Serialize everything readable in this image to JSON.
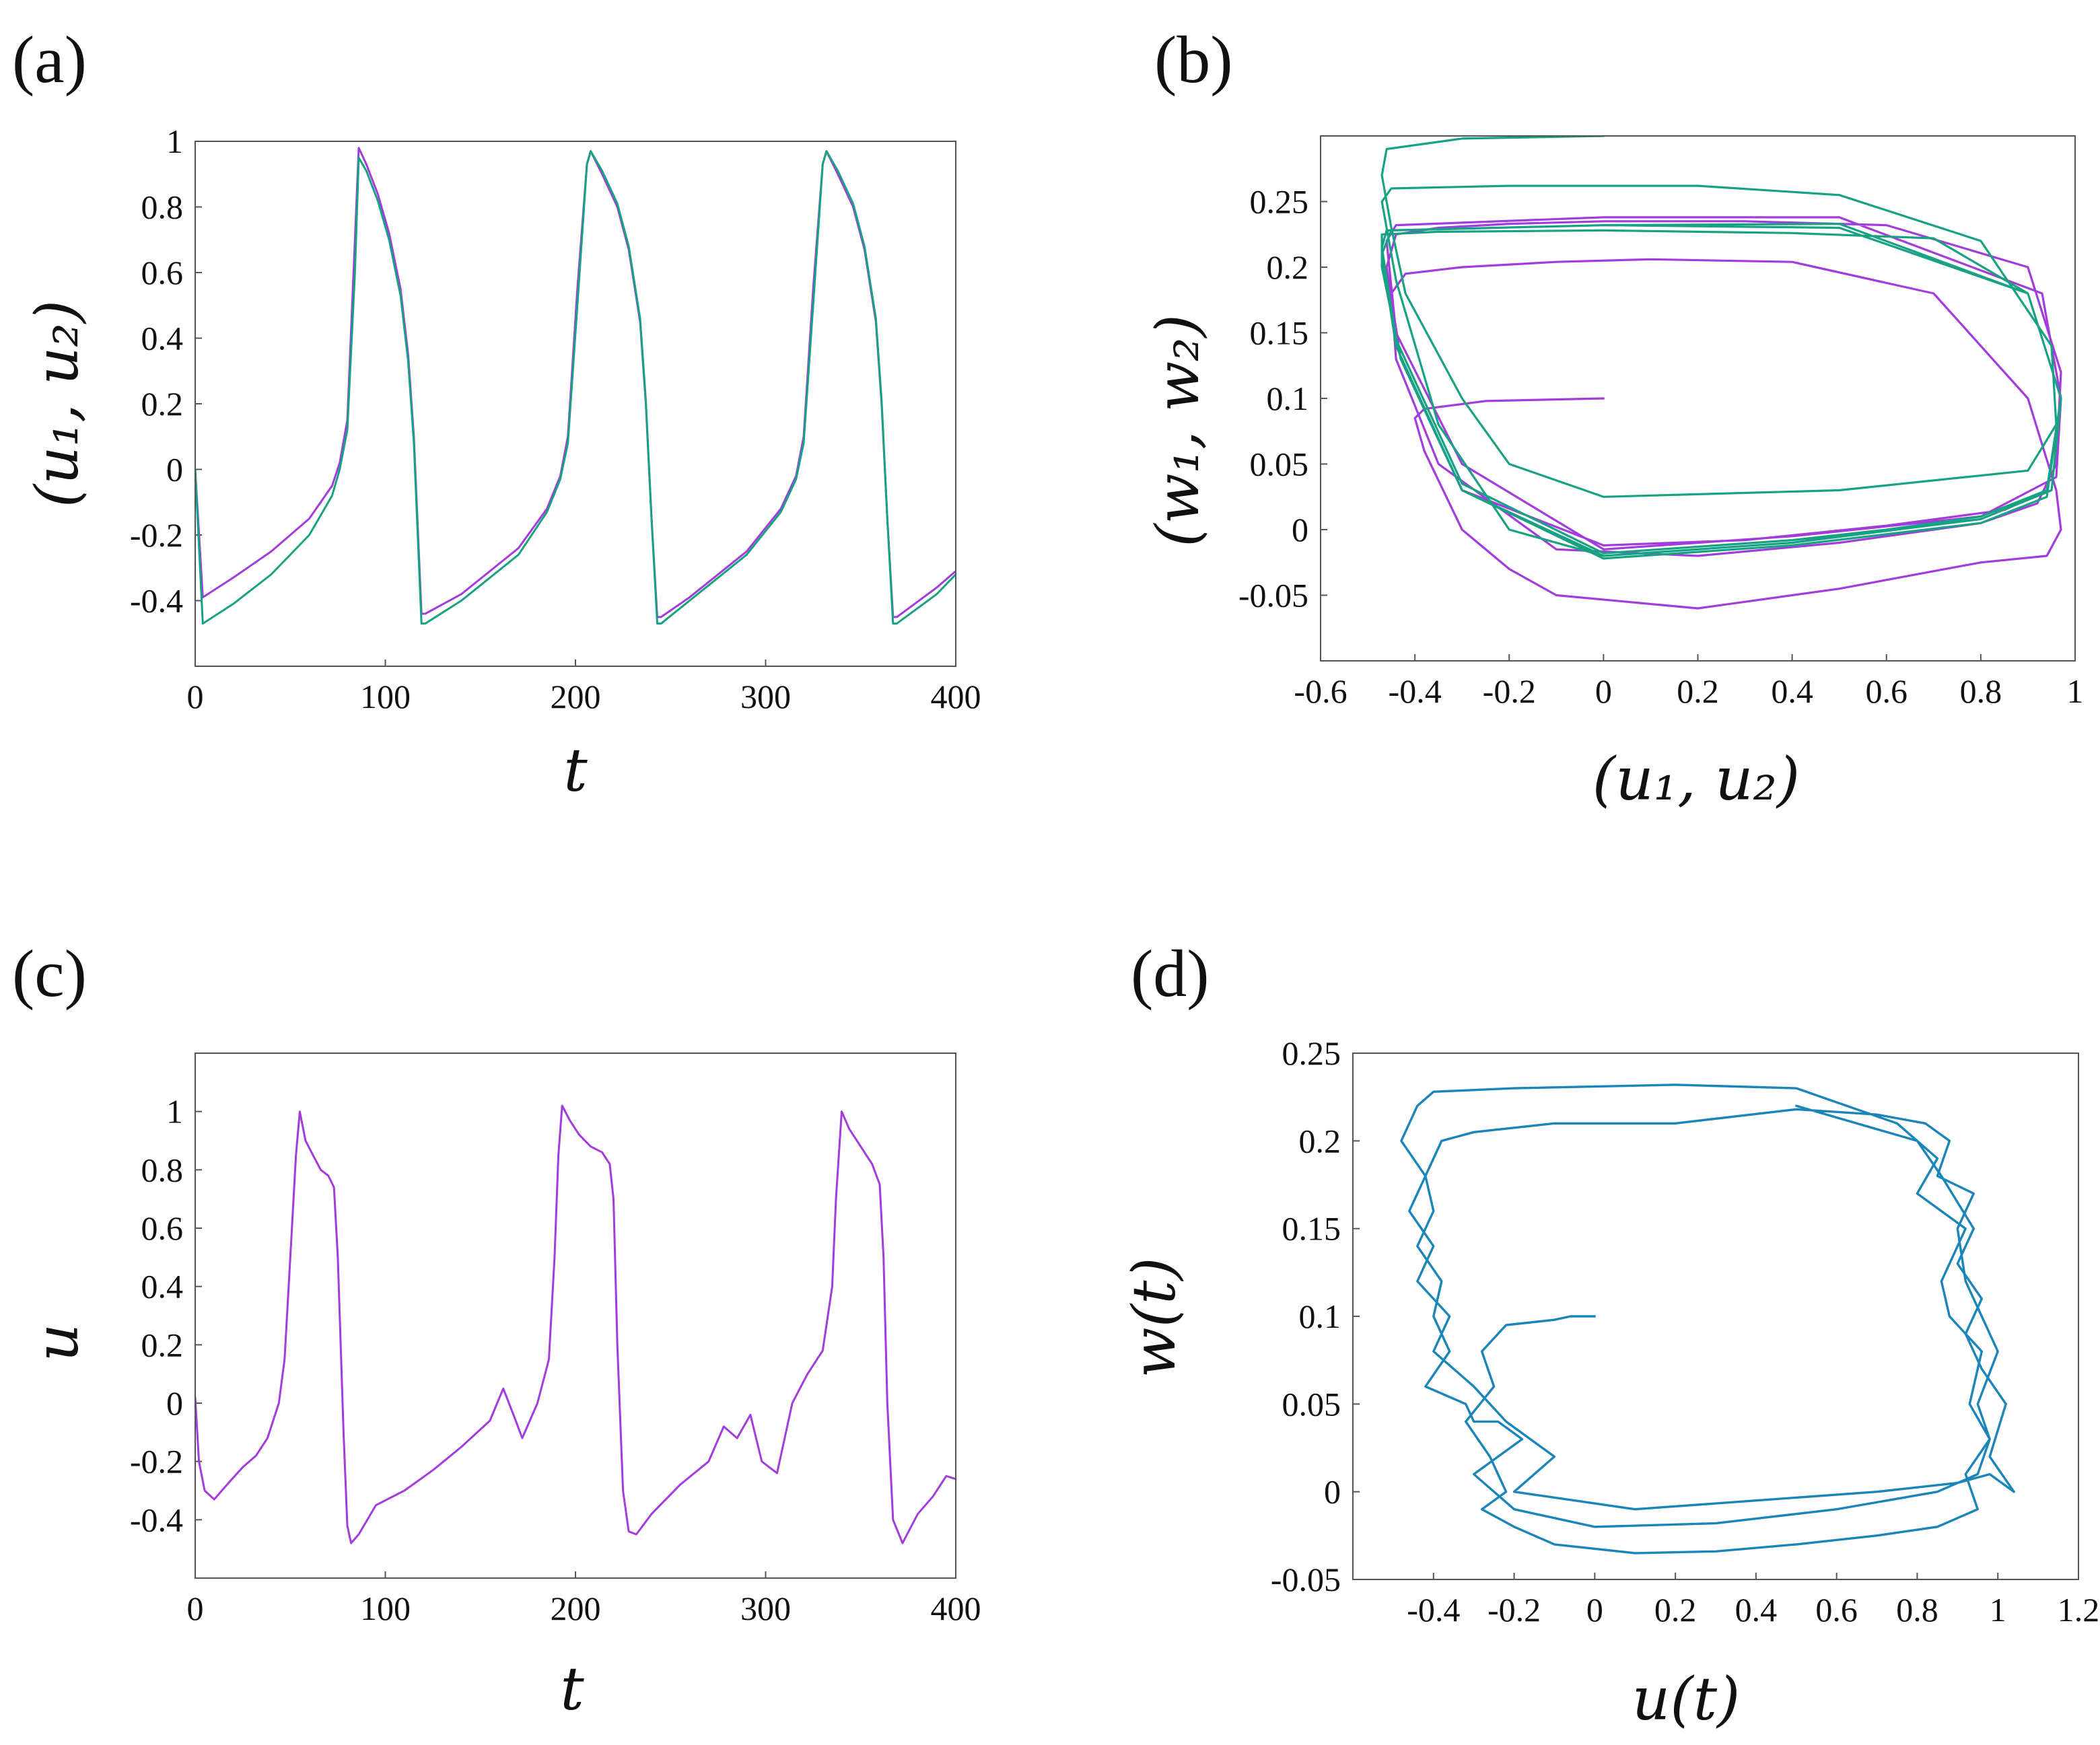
{
  "colors": {
    "purple": "#a23cdc",
    "green": "#17a283",
    "blue": "#1a85b8",
    "axis": "#555555",
    "text": "#111111"
  },
  "chart_data": [
    {
      "id": "a",
      "panel_label": "(a)",
      "type": "line",
      "title": "",
      "xlabel": "t",
      "ylabel": "(u1, u2)",
      "xlabel_display": "t",
      "ylabel_display": "(u₁, u₂)",
      "xlim": [
        0,
        400
      ],
      "ylim": [
        -0.6,
        1.0
      ],
      "xticks": [
        0,
        100,
        200,
        300,
        400
      ],
      "xtick_labels": [
        "0",
        "100",
        "200",
        "300",
        "400"
      ],
      "yticks": [
        1,
        0.8,
        0.6,
        0.4,
        0.2,
        0,
        -0.2,
        -0.4
      ],
      "ytick_labels": [
        "1",
        "0.8",
        "0.6",
        "0.4",
        "0.2",
        "0",
        "-0.2",
        "-0.4"
      ],
      "series": [
        {
          "name": "u1",
          "color": "purple",
          "x": [
            0,
            4,
            20,
            40,
            60,
            72,
            76,
            80,
            84,
            86,
            90,
            96,
            102,
            108,
            112,
            115,
            119,
            121,
            140,
            170,
            185,
            192,
            196,
            201,
            206,
            208,
            214,
            222,
            228,
            234,
            237,
            240,
            243,
            245,
            260,
            290,
            308,
            316,
            320,
            325,
            330,
            332,
            338,
            346,
            352,
            358,
            361,
            364,
            367,
            369,
            390,
            400
          ],
          "y": [
            0,
            -0.39,
            -0.33,
            -0.25,
            -0.15,
            -0.05,
            0.02,
            0.15,
            0.7,
            0.98,
            0.93,
            0.84,
            0.72,
            0.55,
            0.35,
            0.1,
            -0.44,
            -0.44,
            -0.38,
            -0.24,
            -0.12,
            -0.02,
            0.1,
            0.55,
            0.93,
            0.97,
            0.9,
            0.8,
            0.67,
            0.45,
            0.2,
            -0.15,
            -0.45,
            -0.45,
            -0.39,
            -0.25,
            -0.12,
            -0.02,
            0.1,
            0.55,
            0.93,
            0.97,
            0.9,
            0.8,
            0.67,
            0.45,
            0.2,
            -0.15,
            -0.45,
            -0.45,
            -0.36,
            -0.31
          ]
        },
        {
          "name": "u2",
          "color": "green",
          "x": [
            0,
            4,
            20,
            40,
            60,
            72,
            76,
            80,
            84,
            86,
            90,
            96,
            102,
            108,
            112,
            115,
            119,
            121,
            140,
            170,
            185,
            192,
            196,
            201,
            206,
            208,
            214,
            222,
            228,
            234,
            237,
            240,
            243,
            245,
            260,
            290,
            308,
            316,
            320,
            325,
            330,
            332,
            338,
            346,
            352,
            358,
            361,
            364,
            367,
            369,
            390,
            400
          ],
          "y": [
            0,
            -0.47,
            -0.41,
            -0.32,
            -0.2,
            -0.08,
            0.0,
            0.12,
            0.6,
            0.95,
            0.91,
            0.82,
            0.7,
            0.53,
            0.33,
            0.08,
            -0.47,
            -0.47,
            -0.4,
            -0.26,
            -0.13,
            -0.03,
            0.08,
            0.5,
            0.93,
            0.97,
            0.91,
            0.81,
            0.68,
            0.46,
            0.21,
            -0.15,
            -0.47,
            -0.47,
            -0.4,
            -0.26,
            -0.13,
            -0.03,
            0.08,
            0.5,
            0.93,
            0.97,
            0.91,
            0.81,
            0.68,
            0.46,
            0.21,
            -0.15,
            -0.47,
            -0.47,
            -0.38,
            -0.32
          ]
        }
      ]
    },
    {
      "id": "b",
      "panel_label": "(b)",
      "type": "line",
      "title": "",
      "xlabel": "(u1, u2)",
      "ylabel": "(w1, w2)",
      "xlabel_display": "(u₁, u₂)",
      "ylabel_display": "(w₁, w₂)",
      "xlim": [
        -0.6,
        1.0
      ],
      "ylim": [
        -0.1,
        0.3
      ],
      "xticks": [
        -0.6,
        -0.4,
        -0.2,
        0,
        0.2,
        0.4,
        0.6,
        0.8,
        1
      ],
      "xtick_labels": [
        "-0.6",
        "-0.4",
        "-0.2",
        "0",
        "0.2",
        "0.4",
        "0.6",
        "0.8",
        "1"
      ],
      "yticks": [
        0.25,
        0.2,
        0.15,
        0.1,
        0.05,
        0,
        -0.05
      ],
      "ytick_labels": [
        "0.25",
        "0.2",
        "0.15",
        "0.1",
        "0.05",
        "0",
        "-0.05"
      ],
      "series": [
        {
          "name": "w1 vs u1",
          "color": "purple",
          "x": [
            0,
            -0.25,
            -0.38,
            -0.4,
            -0.38,
            -0.3,
            -0.2,
            -0.1,
            0.2,
            0.5,
            0.8,
            0.94,
            0.97,
            0.96,
            0.9,
            0.7,
            0.4,
            0.1,
            -0.1,
            -0.3,
            -0.42,
            -0.45,
            -0.44,
            -0.35,
            -0.1,
            0.2,
            0.5,
            0.8,
            0.92,
            0.96,
            0.97,
            0.9,
            0.6,
            0.3,
            0.0,
            -0.2,
            -0.35,
            -0.44,
            -0.46,
            -0.43,
            -0.3,
            0.0,
            0.3,
            0.6,
            0.85,
            0.94,
            0.97,
            0.93,
            0.5,
            0.0,
            -0.44,
            -0.46,
            -0.44,
            -0.3,
            0.0,
            0.4,
            0.8,
            0.96,
            0.97
          ],
          "y": [
            0.1,
            0.098,
            0.092,
            0.085,
            0.06,
            0.0,
            -0.03,
            -0.05,
            -0.06,
            -0.045,
            -0.025,
            -0.02,
            0.0,
            0.03,
            0.1,
            0.18,
            0.204,
            0.206,
            0.204,
            0.2,
            0.195,
            0.18,
            0.13,
            0.05,
            -0.015,
            -0.02,
            -0.01,
            0.005,
            0.02,
            0.05,
            0.12,
            0.2,
            0.232,
            0.235,
            0.235,
            0.233,
            0.23,
            0.225,
            0.2,
            0.13,
            0.03,
            -0.012,
            -0.008,
            0.003,
            0.015,
            0.03,
            0.1,
            0.18,
            0.238,
            0.238,
            0.232,
            0.22,
            0.15,
            0.05,
            -0.015,
            -0.005,
            0.01,
            0.04,
            0.1
          ]
        },
        {
          "name": "w2 vs u2",
          "color": "green",
          "x": [
            0,
            -0.3,
            -0.46,
            -0.47,
            -0.45,
            -0.42,
            -0.3,
            -0.2,
            0.0,
            0.5,
            0.9,
            0.96,
            0.95,
            0.8,
            0.5,
            0.2,
            -0.2,
            -0.45,
            -0.47,
            -0.44,
            -0.35,
            -0.2,
            0.0,
            0.4,
            0.8,
            0.94,
            0.97,
            0.9,
            0.7,
            0.4,
            0.0,
            -0.35,
            -0.47,
            -0.47,
            -0.43,
            -0.3,
            0.0,
            0.4,
            0.8,
            0.94,
            0.97,
            0.9,
            0.5,
            0.0,
            -0.45,
            -0.47,
            -0.44,
            -0.3,
            0.0,
            0.4,
            0.8,
            0.95,
            0.97,
            0.9,
            0.5,
            0.0,
            -0.46,
            -0.47,
            -0.44,
            -0.3,
            0.0,
            0.4,
            0.8,
            0.95,
            0.97
          ],
          "y": [
            0.3,
            0.298,
            0.29,
            0.27,
            0.23,
            0.18,
            0.1,
            0.05,
            0.025,
            0.03,
            0.045,
            0.08,
            0.14,
            0.22,
            0.255,
            0.262,
            0.262,
            0.26,
            0.25,
            0.19,
            0.08,
            0.0,
            -0.02,
            -0.01,
            0.01,
            0.03,
            0.1,
            0.18,
            0.222,
            0.226,
            0.228,
            0.227,
            0.225,
            0.2,
            0.13,
            0.03,
            -0.022,
            -0.012,
            0.005,
            0.025,
            0.1,
            0.18,
            0.23,
            0.232,
            0.228,
            0.21,
            0.14,
            0.03,
            -0.02,
            -0.01,
            0.008,
            0.03,
            0.1,
            0.18,
            0.233,
            0.232,
            0.228,
            0.215,
            0.145,
            0.035,
            -0.018,
            -0.008,
            0.008,
            0.03,
            0.1
          ]
        }
      ]
    },
    {
      "id": "c",
      "panel_label": "(c)",
      "type": "line",
      "title": "",
      "xlabel": "t",
      "ylabel": "u",
      "xlabel_display": "t",
      "ylabel_display": "u",
      "xlim": [
        0,
        400
      ],
      "ylim": [
        -0.6,
        1.2
      ],
      "xticks": [
        0,
        100,
        200,
        300,
        400
      ],
      "xtick_labels": [
        "0",
        "100",
        "200",
        "300",
        "400"
      ],
      "yticks": [
        1,
        0.8,
        0.6,
        0.4,
        0.2,
        0,
        -0.2,
        -0.4
      ],
      "ytick_labels": [
        "1",
        "0.8",
        "0.6",
        "0.4",
        "0.2",
        "0",
        "-0.2",
        "-0.4"
      ],
      "series": [
        {
          "name": "u",
          "color": "purple",
          "x": [
            0,
            2,
            5,
            10,
            18,
            25,
            32,
            38,
            44,
            47,
            50,
            53,
            55,
            58,
            62,
            66,
            70,
            73,
            75,
            78,
            80,
            82,
            86,
            95,
            110,
            125,
            140,
            155,
            162,
            168,
            172,
            176,
            180,
            186,
            189,
            191,
            193,
            197,
            202,
            208,
            214,
            218,
            220,
            222,
            225,
            228,
            232,
            240,
            255,
            270,
            278,
            285,
            292,
            298,
            306,
            314,
            322,
            330,
            335,
            337,
            340,
            344,
            350,
            356,
            360,
            362,
            364,
            367,
            372,
            380,
            388,
            395,
            400
          ],
          "y": [
            0.02,
            -0.2,
            -0.3,
            -0.33,
            -0.27,
            -0.22,
            -0.18,
            -0.12,
            0.0,
            0.15,
            0.5,
            0.85,
            1.0,
            0.9,
            0.85,
            0.8,
            0.78,
            0.74,
            0.5,
            -0.1,
            -0.42,
            -0.48,
            -0.45,
            -0.35,
            -0.3,
            -0.23,
            -0.15,
            -0.06,
            0.05,
            -0.05,
            -0.12,
            -0.06,
            0.0,
            0.15,
            0.5,
            0.85,
            1.02,
            0.97,
            0.92,
            0.88,
            0.86,
            0.82,
            0.7,
            0.2,
            -0.3,
            -0.44,
            -0.45,
            -0.38,
            -0.28,
            -0.2,
            -0.08,
            -0.12,
            -0.04,
            -0.2,
            -0.24,
            0.0,
            0.1,
            0.18,
            0.4,
            0.7,
            1.0,
            0.94,
            0.88,
            0.82,
            0.75,
            0.5,
            0.0,
            -0.4,
            -0.48,
            -0.38,
            -0.32,
            -0.25,
            -0.26
          ]
        }
      ]
    },
    {
      "id": "d",
      "panel_label": "(d)",
      "type": "line",
      "title": "",
      "xlabel": "u(t)",
      "ylabel": "w(t)",
      "xlabel_display": "u(t)",
      "ylabel_display": "w(t)",
      "xlim": [
        -0.6,
        1.2
      ],
      "ylim": [
        -0.05,
        0.25
      ],
      "xticks": [
        -0.4,
        -0.2,
        0,
        0.2,
        0.4,
        0.6,
        0.8,
        1,
        1.2
      ],
      "xtick_labels": [
        "-0.4",
        "-0.2",
        "0",
        "0.2",
        "0.4",
        "0.6",
        "0.8",
        "1",
        "1.2"
      ],
      "yticks": [
        0.25,
        0.2,
        0.15,
        0.1,
        0.05,
        0,
        -0.05
      ],
      "ytick_labels": [
        "0.25",
        "0.2",
        "0.15",
        "0.1",
        "0.05",
        "0",
        "-0.05"
      ],
      "series": [
        {
          "name": "w vs u",
          "color": "blue",
          "x": [
            0,
            -0.06,
            -0.1,
            -0.22,
            -0.28,
            -0.25,
            -0.32,
            -0.26,
            -0.22,
            -0.28,
            -0.2,
            -0.1,
            0.1,
            0.3,
            0.5,
            0.7,
            0.85,
            0.95,
            0.92,
            0.98,
            0.95,
            1.0,
            0.96,
            0.92,
            0.9,
            0.94,
            0.85,
            0.88,
            0.82,
            0.7,
            0.5,
            0.2,
            -0.1,
            -0.3,
            -0.38,
            -0.42,
            -0.4,
            -0.44,
            -0.38,
            -0.4,
            -0.36,
            -0.42,
            -0.32,
            -0.3,
            -0.24,
            -0.18,
            -0.3,
            -0.2,
            0.0,
            0.3,
            0.6,
            0.85,
            0.95,
            0.98,
            0.93,
            0.96,
            0.88,
            0.86,
            0.92,
            0.8,
            0.85,
            0.75,
            0.5,
            0.2,
            -0.2,
            -0.4,
            -0.44,
            -0.48,
            -0.42,
            -0.46,
            -0.4,
            -0.44,
            -0.36,
            -0.4,
            -0.3,
            -0.22,
            -0.1,
            -0.2,
            0.1,
            0.4,
            0.7,
            0.9,
            0.98,
            1.04,
            0.98,
            1.02,
            0.96,
            0.92,
            0.96,
            0.9,
            0.94,
            0.86,
            0.8,
            0.5
          ],
          "y": [
            0.1,
            0.1,
            0.098,
            0.095,
            0.08,
            0.06,
            0.04,
            0.02,
            0.0,
            -0.01,
            -0.02,
            -0.03,
            -0.035,
            -0.034,
            -0.03,
            -0.025,
            -0.02,
            -0.01,
            0.01,
            0.03,
            0.05,
            0.08,
            0.1,
            0.12,
            0.15,
            0.17,
            0.18,
            0.2,
            0.21,
            0.215,
            0.218,
            0.21,
            0.21,
            0.205,
            0.2,
            0.18,
            0.16,
            0.14,
            0.12,
            0.1,
            0.08,
            0.06,
            0.05,
            0.04,
            0.04,
            0.03,
            0.01,
            -0.01,
            -0.02,
            -0.018,
            -0.01,
            0.0,
            0.01,
            0.03,
            0.05,
            0.08,
            0.1,
            0.12,
            0.15,
            0.17,
            0.19,
            0.21,
            0.23,
            0.232,
            0.23,
            0.228,
            0.22,
            0.2,
            0.18,
            0.16,
            0.14,
            0.12,
            0.1,
            0.08,
            0.06,
            0.04,
            0.02,
            0.0,
            -0.01,
            -0.005,
            0.0,
            0.005,
            0.01,
            0.0,
            0.02,
            0.05,
            0.07,
            0.09,
            0.11,
            0.13,
            0.15,
            0.18,
            0.2,
            0.22
          ]
        }
      ]
    }
  ]
}
